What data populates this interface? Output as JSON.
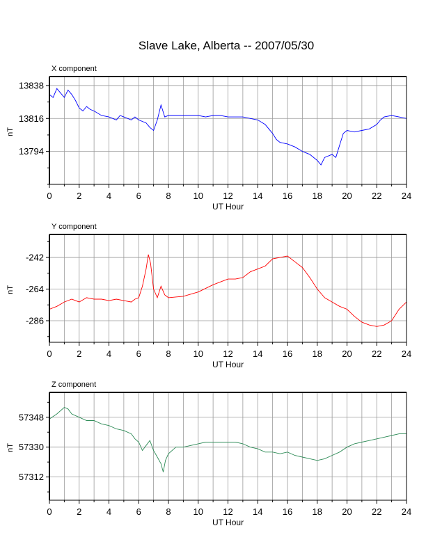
{
  "title": "Slave Lake, Alberta -- 2007/05/30",
  "chart_data": [
    {
      "type": "line",
      "panel_label": "X component",
      "xlabel": "UT Hour",
      "ylabel": "nT",
      "xlim": [
        0,
        24
      ],
      "ylim": [
        13772,
        13844
      ],
      "x_ticks": [
        0,
        2,
        4,
        6,
        8,
        10,
        12,
        14,
        16,
        18,
        20,
        22,
        24
      ],
      "y_ticks": [
        13838,
        13816,
        13794
      ],
      "grid": true,
      "series": [
        {
          "color": "#0000ff",
          "x": [
            0,
            0.25,
            0.5,
            0.75,
            1.0,
            1.25,
            1.5,
            1.75,
            2.0,
            2.25,
            2.5,
            2.75,
            3.0,
            3.5,
            4.0,
            4.5,
            4.75,
            5.0,
            5.5,
            5.75,
            6.0,
            6.5,
            6.75,
            7.0,
            7.25,
            7.5,
            7.75,
            8.0,
            9.0,
            10.0,
            10.5,
            11.0,
            11.5,
            12.0,
            12.5,
            13.0,
            13.5,
            14.0,
            14.5,
            15.0,
            15.25,
            15.5,
            16.0,
            16.5,
            17.0,
            17.5,
            18.0,
            18.25,
            18.5,
            19.0,
            19.25,
            19.5,
            19.75,
            20.0,
            20.5,
            21.0,
            21.5,
            22.0,
            22.25,
            22.5,
            23.0,
            23.5,
            24.0
          ],
          "y": [
            13832,
            13830,
            13836,
            13833,
            13830,
            13835,
            13832,
            13828,
            13823,
            13821,
            13824,
            13822,
            13821,
            13818,
            13817,
            13815,
            13818,
            13817,
            13815,
            13817,
            13815,
            13813,
            13810,
            13808,
            13815,
            13825,
            13817,
            13818,
            13818,
            13818,
            13817,
            13818,
            13818,
            13817,
            13817,
            13817,
            13816,
            13815,
            13812,
            13806,
            13802,
            13800,
            13799,
            13797,
            13794,
            13792,
            13788,
            13785,
            13790,
            13792,
            13790,
            13798,
            13806,
            13808,
            13807,
            13808,
            13809,
            13812,
            13815,
            13817,
            13818,
            13817,
            13816
          ]
        }
      ]
    },
    {
      "type": "line",
      "panel_label": "Y component",
      "xlabel": "UT Hour",
      "ylabel": "nT",
      "xlim": [
        0,
        24
      ],
      "ylim": [
        -301,
        -226
      ],
      "x_ticks": [
        0,
        2,
        4,
        6,
        8,
        10,
        12,
        14,
        16,
        18,
        20,
        22,
        24
      ],
      "y_ticks": [
        -242,
        -264,
        -286
      ],
      "grid": true,
      "series": [
        {
          "color": "#ff0000",
          "x": [
            0,
            0.5,
            1.0,
            1.5,
            2.0,
            2.5,
            3.0,
            3.5,
            4.0,
            4.5,
            5.0,
            5.5,
            5.75,
            6.0,
            6.25,
            6.5,
            6.65,
            6.8,
            7.0,
            7.25,
            7.5,
            7.75,
            8.0,
            9.0,
            10.0,
            11.0,
            12.0,
            12.5,
            13.0,
            13.5,
            14.0,
            14.5,
            15.0,
            15.5,
            16.0,
            16.5,
            17.0,
            17.5,
            18.0,
            18.5,
            19.0,
            19.5,
            20.0,
            20.5,
            21.0,
            21.5,
            22.0,
            22.5,
            23.0,
            23.5,
            24.0
          ],
          "y": [
            -278,
            -276,
            -273,
            -271,
            -273,
            -270,
            -271,
            -271,
            -272,
            -271,
            -272,
            -273,
            -271,
            -270,
            -262,
            -250,
            -240,
            -246,
            -264,
            -270,
            -262,
            -268,
            -270,
            -269,
            -266,
            -261,
            -257,
            -257,
            -256,
            -252,
            -250,
            -248,
            -243,
            -242,
            -241,
            -245,
            -249,
            -256,
            -264,
            -270,
            -273,
            -276,
            -278,
            -283,
            -287,
            -289,
            -290,
            -289,
            -286,
            -278,
            -273
          ]
        }
      ]
    },
    {
      "type": "line",
      "panel_label": "Z component",
      "xlabel": "UT Hour",
      "ylabel": "nT",
      "xlim": [
        0,
        24
      ],
      "ylim": [
        57298,
        57363
      ],
      "x_ticks": [
        0,
        2,
        4,
        6,
        8,
        10,
        12,
        14,
        16,
        18,
        20,
        22,
        24
      ],
      "y_ticks": [
        57348,
        57330,
        57312
      ],
      "grid": true,
      "series": [
        {
          "color": "#2e8b57",
          "x": [
            0,
            0.5,
            1.0,
            1.25,
            1.5,
            2.0,
            2.5,
            3.0,
            3.5,
            4.0,
            4.5,
            5.0,
            5.5,
            5.75,
            6.0,
            6.25,
            6.5,
            6.75,
            7.0,
            7.25,
            7.5,
            7.65,
            7.8,
            8.0,
            8.5,
            9.0,
            9.5,
            10.0,
            10.5,
            11.0,
            11.5,
            12.0,
            12.5,
            13.0,
            13.5,
            14.0,
            14.5,
            15.0,
            15.5,
            16.0,
            16.5,
            17.0,
            17.5,
            18.0,
            18.5,
            19.0,
            19.5,
            20.0,
            20.5,
            21.0,
            21.5,
            22.0,
            22.5,
            23.0,
            23.5,
            24.0
          ],
          "y": [
            57347,
            57350,
            57354,
            57353,
            57350,
            57348,
            57346,
            57346,
            57344,
            57343,
            57341,
            57340,
            57338,
            57335,
            57333,
            57328,
            57331,
            57334,
            57328,
            57324,
            57320,
            57315,
            57322,
            57326,
            57330,
            57330,
            57331,
            57332,
            57333,
            57333,
            57333,
            57333,
            57333,
            57332,
            57330,
            57329,
            57327,
            57327,
            57326,
            57327,
            57325,
            57324,
            57323,
            57322,
            57323,
            57325,
            57327,
            57330,
            57332,
            57333,
            57334,
            57335,
            57336,
            57337,
            57338,
            57338
          ]
        }
      ]
    }
  ]
}
